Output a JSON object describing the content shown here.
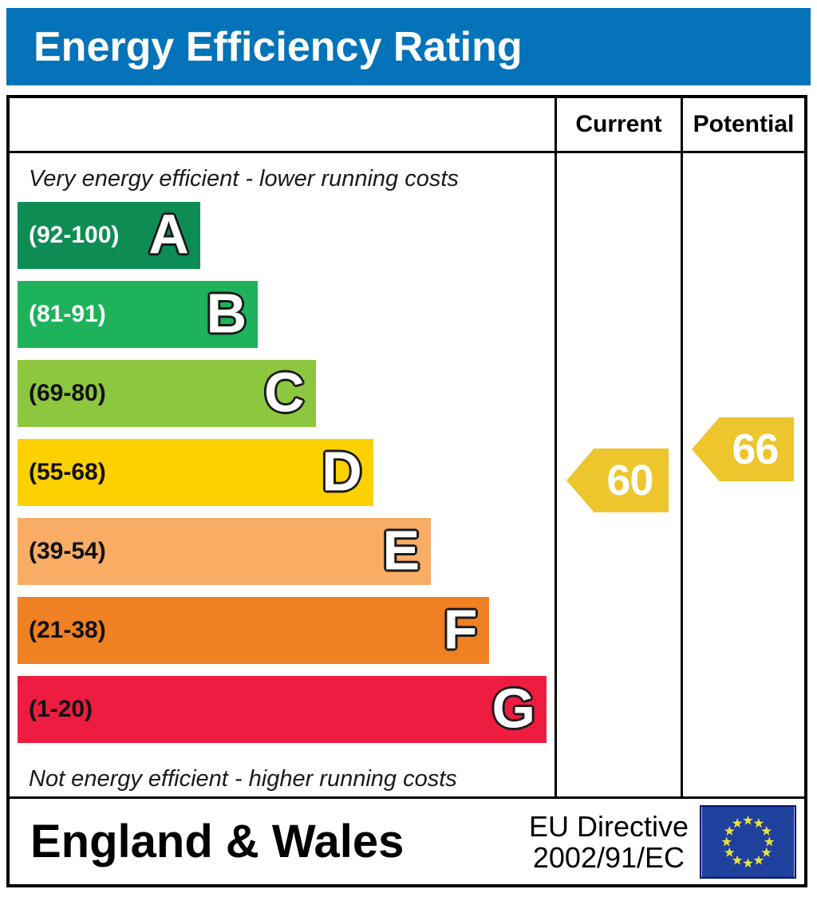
{
  "title": "Energy Efficiency Rating",
  "columns": {
    "current": "Current",
    "potential": "Potential"
  },
  "chart_data": {
    "type": "bar",
    "title": "Energy Efficiency Rating",
    "top_note": "Very energy efficient - lower running costs",
    "bottom_note": "Not energy efficient - higher running costs",
    "bands": [
      {
        "letter": "A",
        "range_label": "(92-100)",
        "min": 92,
        "max": 100,
        "color": "#0d8d54",
        "label_color": "#ffffff"
      },
      {
        "letter": "B",
        "range_label": "(81-91)",
        "min": 81,
        "max": 91,
        "color": "#1eb35b",
        "label_color": "#ffffff"
      },
      {
        "letter": "C",
        "range_label": "(69-80)",
        "min": 69,
        "max": 80,
        "color": "#8dc63f",
        "label_color": "#111111"
      },
      {
        "letter": "D",
        "range_label": "(55-68)",
        "min": 55,
        "max": 68,
        "color": "#fdd000",
        "label_color": "#111111"
      },
      {
        "letter": "E",
        "range_label": "(39-54)",
        "min": 39,
        "max": 54,
        "color": "#f9ac63",
        "label_color": "#111111"
      },
      {
        "letter": "F",
        "range_label": "(21-38)",
        "min": 21,
        "max": 38,
        "color": "#ef8023",
        "label_color": "#111111"
      },
      {
        "letter": "G",
        "range_label": "(1-20)",
        "min": 1,
        "max": 20,
        "color": "#ee1c40",
        "label_color": "#111111"
      }
    ],
    "current": {
      "label": "Current",
      "value": 60,
      "band": "D",
      "arrow_color": "#edc52c"
    },
    "potential": {
      "label": "Potential",
      "value": 66,
      "band": "D",
      "arrow_color": "#edc52c"
    },
    "ylim": [
      1,
      100
    ],
    "legend_position": "none",
    "grid": false
  },
  "footer": {
    "region": "England & Wales",
    "directive": [
      "EU Directive",
      "2002/91/EC"
    ],
    "flag_colors": {
      "background": "#20409e",
      "stars": "#e8e338"
    }
  },
  "colors": {
    "banner_bg": "#0473b9",
    "banner_text": "#ffffff",
    "border": "#000000"
  }
}
